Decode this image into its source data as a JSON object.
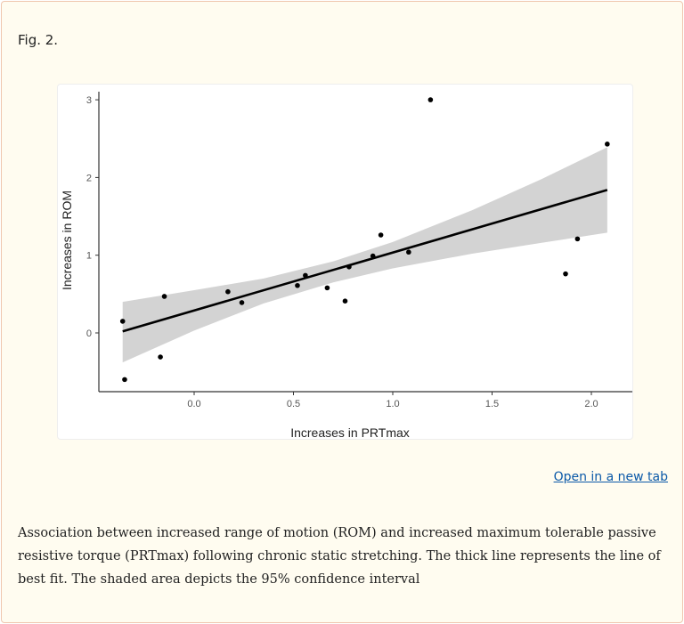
{
  "figure": {
    "label": "Fig. 2.",
    "open_link": "Open in a new tab",
    "caption": "Association between increased range of motion (ROM) and increased maximum tolerable passive resistive torque (PRTmax) following chronic static stretching. The thick line represents the line of best fit. The shaded area depicts the 95% confidence interval"
  },
  "colors": {
    "points": "#000000",
    "fit_line": "#000000",
    "ci_band": "#d3d3d3",
    "link": "#0b59a8"
  },
  "chart_data": {
    "type": "scatter",
    "title": "",
    "xlabel": "Increases in PRTmax",
    "ylabel": "Increases in ROM",
    "xlim": [
      -0.42,
      2.2
    ],
    "ylim": [
      -0.75,
      3.1
    ],
    "xticks": [
      "0.0",
      "0.5",
      "1.0",
      "1.5",
      "2.0"
    ],
    "xtick_values": [
      0,
      0.5,
      1.0,
      1.5,
      2.0
    ],
    "yticks": [
      "0",
      "1",
      "2",
      "3"
    ],
    "ytick_values": [
      0,
      1,
      2,
      3
    ],
    "grid": false,
    "points": [
      [
        -0.36,
        0.15
      ],
      [
        -0.35,
        -0.6
      ],
      [
        -0.17,
        -0.31
      ],
      [
        -0.15,
        0.47
      ],
      [
        0.17,
        0.53
      ],
      [
        0.24,
        0.39
      ],
      [
        0.52,
        0.61
      ],
      [
        0.56,
        0.74
      ],
      [
        0.67,
        0.58
      ],
      [
        0.76,
        0.41
      ],
      [
        0.78,
        0.85
      ],
      [
        0.9,
        0.99
      ],
      [
        0.94,
        1.26
      ],
      [
        1.08,
        1.04
      ],
      [
        1.19,
        3.0
      ],
      [
        1.87,
        0.76
      ],
      [
        1.93,
        1.21
      ],
      [
        2.08,
        2.43
      ]
    ],
    "fit_line": {
      "x": [
        -0.36,
        2.08
      ],
      "y": [
        0.02,
        1.84
      ]
    },
    "confidence_band": {
      "level": "95%",
      "x": [
        -0.36,
        0.0,
        0.35,
        0.7,
        1.0,
        1.4,
        1.75,
        2.08
      ],
      "lower": [
        -0.38,
        0.03,
        0.38,
        0.65,
        0.83,
        1.02,
        1.16,
        1.29
      ],
      "upper": [
        0.4,
        0.55,
        0.7,
        0.92,
        1.17,
        1.58,
        1.98,
        2.39
      ]
    }
  }
}
